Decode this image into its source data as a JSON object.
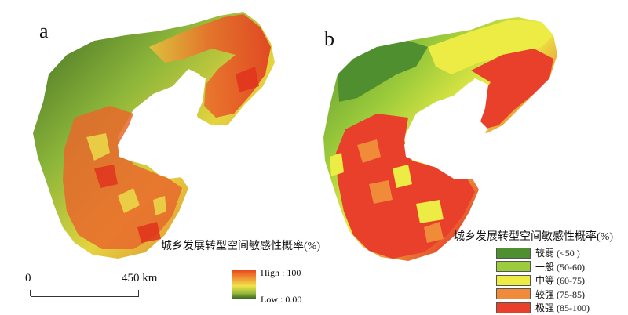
{
  "panels": [
    {
      "label": "a"
    },
    {
      "label": "b"
    }
  ],
  "continuous_legend": {
    "title": "城乡发展转型空间敏感性概率(%)",
    "high_label": "High : 100",
    "low_label": "Low : 0.00"
  },
  "scale_bar": {
    "zero_label": "0",
    "max_label": "450 km"
  },
  "class_legend": {
    "title": "城乡发展转型空间敏感性概率(%)",
    "classes": [
      {
        "label": "较弱 (<50 )",
        "color": "#4f8f2f"
      },
      {
        "label": "一般 (50-60)",
        "color": "#9ccb3b"
      },
      {
        "label": "中等 (60-75)",
        "color": "#ecec45"
      },
      {
        "label": "较强 (75-85)",
        "color": "#f08b3a"
      },
      {
        "label": "极强 (85-100)",
        "color": "#e8402b"
      }
    ]
  },
  "colors": {
    "gradient_high": "#e8401f",
    "gradient_mid": "#f1e24a",
    "gradient_low": "#2f5e1f",
    "sea": "#ffffff"
  }
}
